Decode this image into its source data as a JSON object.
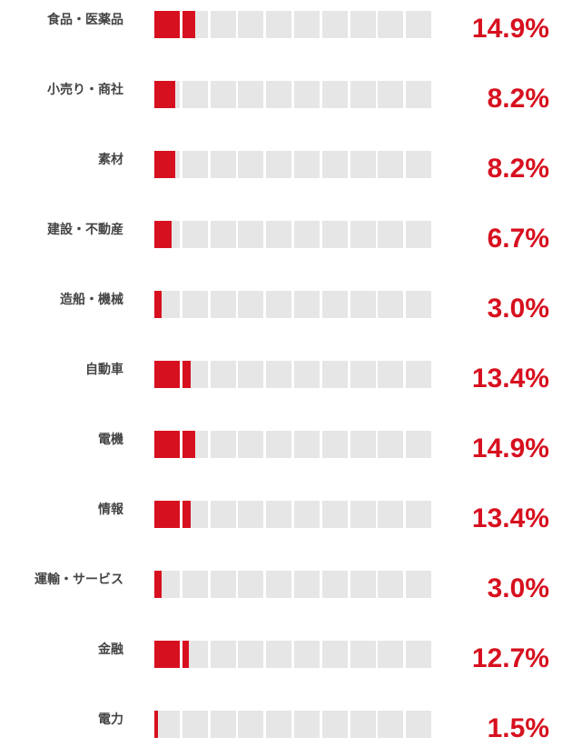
{
  "accent_color": "#d7101f",
  "track_color": "#e6e6e6",
  "chart_data": {
    "type": "bar",
    "segments_per_bar": 10,
    "rows": [
      {
        "category": "食品・医薬品",
        "value": 14.9,
        "label": "14.9%"
      },
      {
        "category": "小売り・商社",
        "value": 8.2,
        "label": "8.2%"
      },
      {
        "category": "素材",
        "value": 8.2,
        "label": "8.2%"
      },
      {
        "category": "建設・不動産",
        "value": 6.7,
        "label": "6.7%"
      },
      {
        "category": "造船・機械",
        "value": 3.0,
        "label": "3.0%"
      },
      {
        "category": "自動車",
        "value": 13.4,
        "label": "13.4%"
      },
      {
        "category": "電機",
        "value": 14.9,
        "label": "14.9%"
      },
      {
        "category": "情報",
        "value": 13.4,
        "label": "13.4%"
      },
      {
        "category": "運輸・サービス",
        "value": 3.0,
        "label": "3.0%"
      },
      {
        "category": "金融",
        "value": 12.7,
        "label": "12.7%"
      },
      {
        "category": "電力",
        "value": 1.5,
        "label": "1.5%"
      }
    ]
  }
}
